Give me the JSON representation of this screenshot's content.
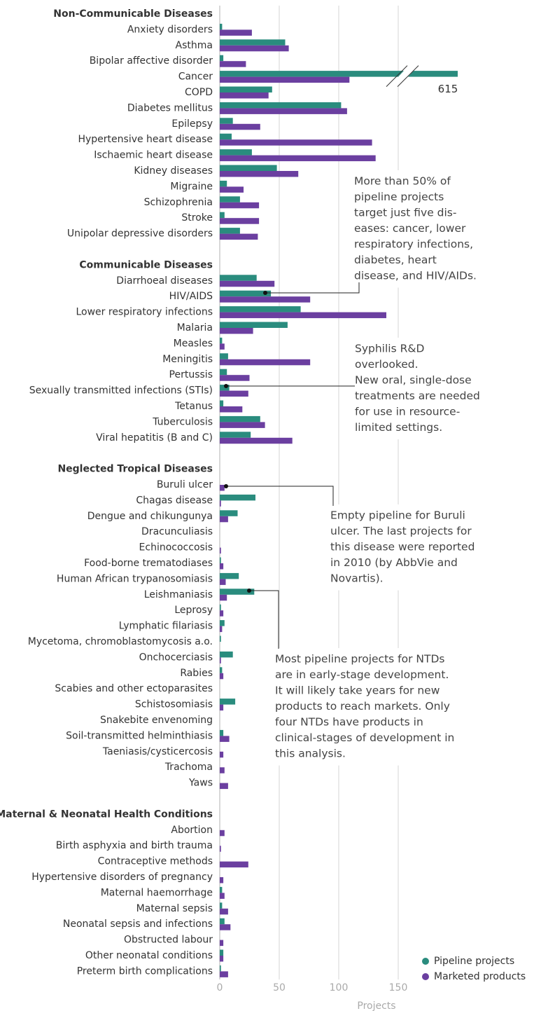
{
  "chart_data": {
    "type": "bar",
    "orientation": "horizontal",
    "x_label": "Projects",
    "xlim": [
      0,
      200
    ],
    "xticks": [
      0,
      50,
      100,
      150
    ],
    "grid": true,
    "legend": "lower right",
    "series": [
      {
        "name": "Pipeline projects",
        "color": "#2a8c7e",
        "values": [
          [
            2,
            55,
            3,
            615,
            44,
            102,
            11,
            10,
            27,
            48,
            6,
            17,
            4,
            17
          ],
          [
            31,
            43,
            68,
            57,
            2,
            7,
            6,
            8,
            3,
            34,
            26
          ],
          [
            0,
            30,
            15,
            0,
            0,
            1,
            16,
            29,
            1,
            4,
            1,
            11,
            2,
            0,
            13,
            0,
            3,
            0,
            0,
            0
          ],
          [
            0,
            0,
            0,
            0,
            2,
            2,
            4,
            0,
            3,
            1
          ]
        ]
      },
      {
        "name": "Marketed products",
        "color": "#6b3fa0",
        "values": [
          [
            27,
            58,
            22,
            109,
            41,
            107,
            34,
            128,
            131,
            66,
            20,
            33,
            33,
            32
          ],
          [
            46,
            76,
            140,
            28,
            4,
            76,
            25,
            24,
            19,
            38,
            61
          ],
          [
            4,
            1,
            7,
            0,
            1,
            3,
            5,
            6,
            3,
            2,
            0,
            1,
            3,
            0,
            3,
            0,
            8,
            3,
            4,
            7
          ],
          [
            4,
            1,
            24,
            3,
            4,
            7,
            9,
            3,
            3,
            7
          ]
        ]
      }
    ],
    "groups": [
      {
        "name": "Non-Communicable Diseases",
        "categories": [
          "Anxiety disorders",
          "Asthma",
          "Bipolar affective disorder",
          "Cancer",
          "COPD",
          "Diabetes mellitus",
          "Epilepsy",
          "Hypertensive heart disease",
          "Ischaemic heart disease",
          "Kidney diseases",
          "Migraine",
          "Schizophrenia",
          "Stroke",
          "Unipolar depressive disorders"
        ]
      },
      {
        "name": "Communicable Diseases",
        "categories": [
          "Diarrhoeal diseases",
          "HIV/AIDS",
          "Lower respiratory infections",
          "Malaria",
          "Measles",
          "Meningitis",
          "Pertussis",
          "Sexually transmitted infections (STIs)",
          "Tetanus",
          "Tuberculosis",
          "Viral hepatitis (B and C)"
        ]
      },
      {
        "name": "Neglected Tropical Diseases",
        "categories": [
          "Buruli ulcer",
          "Chagas disease",
          "Dengue and chikungunya",
          "Dracunculiasis",
          "Echinococcosis",
          "Food-borne trematodiases",
          "Human African trypanosomiasis",
          "Leishmaniasis",
          "Leprosy",
          "Lymphatic filariasis",
          "Mycetoma, chromoblastomycosis a.o.",
          "Onchocerciasis",
          "Rabies",
          "Scabies and other ectoparasites",
          "Schistosomiasis",
          "Snakebite envenoming",
          "Soil-transmitted helminthiasis",
          "Taeniasis/cysticercosis",
          "Trachoma",
          "Yaws"
        ]
      },
      {
        "name": "Maternal & Neonatal Health Conditions",
        "categories": [
          "Abortion",
          "Birth asphyxia and birth trauma",
          "Contraceptive methods",
          "Hypertensive disorders of pregnancy",
          "Maternal haemorrhage",
          "Maternal sepsis",
          "Neonatal sepsis and infections",
          "Obstructed labour",
          "Other neonatal conditions",
          "Preterm birth complications"
        ]
      }
    ],
    "annotations": [
      {
        "lines": [
          "More than 50% of",
          "pipeline projects",
          "target just five dis-",
          "eases: cancer, lower",
          "respiratory infections,",
          "diabetes, heart",
          "disease, and HIV/AIDs."
        ]
      },
      {
        "lines": [
          "Syphilis R&D",
          "overlooked.",
          "New oral, single-dose",
          "treatments are needed",
          "for use in resource-",
          "limited settings."
        ]
      },
      {
        "lines": [
          "Empty pipeline for Buruli",
          "ulcer. The last projects for",
          "this disease were reported",
          "in 2010 (by AbbVie and",
          "Novartis)."
        ]
      },
      {
        "lines": [
          "Most pipeline projects for NTDs",
          "are in early-stage development.",
          "It will likely take years for new",
          "products to reach markets. Only",
          "four NTDs have products in",
          "clinical-stages of development in",
          "this analysis."
        ]
      }
    ]
  }
}
